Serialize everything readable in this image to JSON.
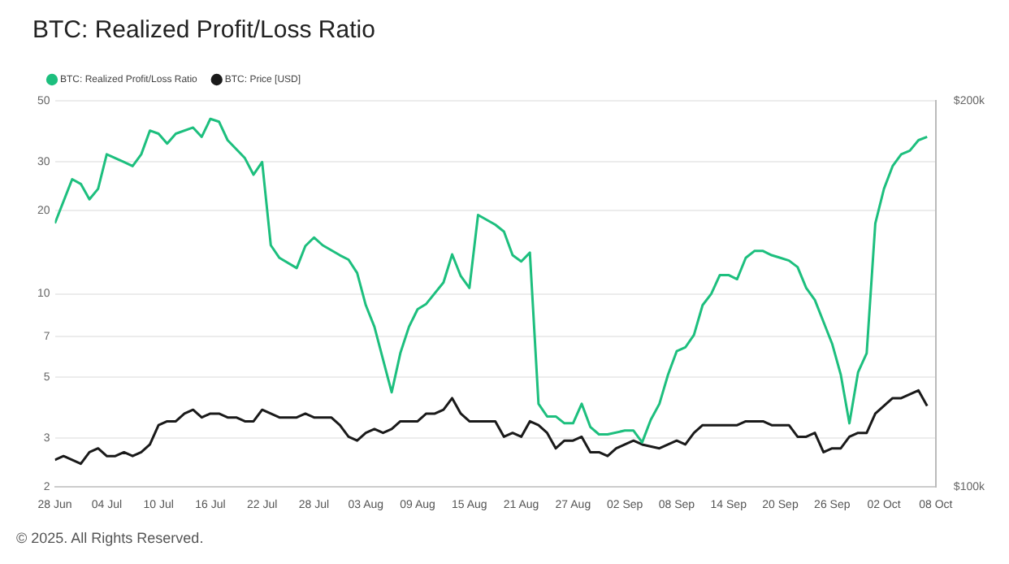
{
  "chart_data": {
    "type": "line",
    "title": "BTC: Realized Profit/Loss Ratio",
    "annotations": [
      "© 2025. All Rights Reserved."
    ],
    "xlim": [
      "2025-06-28",
      "2025-10-08"
    ],
    "xticks": [
      {
        "value": "2025-06-28",
        "label": "28 Jun"
      },
      {
        "value": "2025-07-04",
        "label": "04 Jul"
      },
      {
        "value": "2025-07-10",
        "label": "10 Jul"
      },
      {
        "value": "2025-07-16",
        "label": "16 Jul"
      },
      {
        "value": "2025-07-22",
        "label": "22 Jul"
      },
      {
        "value": "2025-07-28",
        "label": "28 Jul"
      },
      {
        "value": "2025-08-03",
        "label": "03 Aug"
      },
      {
        "value": "2025-08-09",
        "label": "09 Aug"
      },
      {
        "value": "2025-08-15",
        "label": "15 Aug"
      },
      {
        "value": "2025-08-21",
        "label": "21 Aug"
      },
      {
        "value": "2025-08-27",
        "label": "27 Aug"
      },
      {
        "value": "2025-09-02",
        "label": "02 Sep"
      },
      {
        "value": "2025-09-08",
        "label": "08 Sep"
      },
      {
        "value": "2025-09-14",
        "label": "14 Sep"
      },
      {
        "value": "2025-09-20",
        "label": "20 Sep"
      },
      {
        "value": "2025-09-26",
        "label": "26 Sep"
      },
      {
        "value": "2025-10-02",
        "label": "02 Oct"
      },
      {
        "value": "2025-10-08",
        "label": "08 Oct"
      }
    ],
    "ylim": [
      2,
      50
    ],
    "yticks": [
      2,
      3,
      5,
      7,
      10,
      20,
      30,
      50
    ],
    "y2lim": [
      100,
      200
    ],
    "y2ticks": [
      {
        "value": 100,
        "label": "$100k"
      },
      {
        "value": 200,
        "label": "$200k"
      }
    ],
    "log": "y",
    "grid": "y",
    "legend": "top left",
    "marker": "none",
    "series": [
      {
        "name": "BTC: Realized Profit/Loss Ratio",
        "color": "#1dbf7e",
        "x": [
          "2025-06-28",
          "2025-06-30",
          "2025-07-01",
          "2025-07-02",
          "2025-07-03",
          "2025-07-04",
          "2025-07-06",
          "2025-07-07",
          "2025-07-08",
          "2025-07-09",
          "2025-07-10",
          "2025-07-11",
          "2025-07-12",
          "2025-07-14",
          "2025-07-15",
          "2025-07-16",
          "2025-07-17",
          "2025-07-18",
          "2025-07-20",
          "2025-07-21",
          "2025-07-22",
          "2025-07-23",
          "2025-07-24",
          "2025-07-26",
          "2025-07-27",
          "2025-07-28",
          "2025-07-29",
          "2025-07-31",
          "2025-08-01",
          "2025-08-02",
          "2025-08-03",
          "2025-08-04",
          "2025-08-06",
          "2025-08-07",
          "2025-08-08",
          "2025-08-09",
          "2025-08-10",
          "2025-08-12",
          "2025-08-13",
          "2025-08-14",
          "2025-08-15",
          "2025-08-16",
          "2025-08-18",
          "2025-08-19",
          "2025-08-20",
          "2025-08-21",
          "2025-08-22",
          "2025-08-23",
          "2025-08-24",
          "2025-08-25",
          "2025-08-26",
          "2025-08-27",
          "2025-08-28",
          "2025-08-29",
          "2025-08-30",
          "2025-08-31",
          "2025-09-02",
          "2025-09-03",
          "2025-09-04",
          "2025-09-05",
          "2025-09-06",
          "2025-09-07",
          "2025-09-08",
          "2025-09-09",
          "2025-09-10",
          "2025-09-11",
          "2025-09-12",
          "2025-09-13",
          "2025-09-14",
          "2025-09-15",
          "2025-09-16",
          "2025-09-17",
          "2025-09-18",
          "2025-09-19",
          "2025-09-20",
          "2025-09-21",
          "2025-09-22",
          "2025-09-23",
          "2025-09-24",
          "2025-09-26",
          "2025-09-27",
          "2025-09-28",
          "2025-09-29",
          "2025-09-30",
          "2025-10-01",
          "2025-10-02",
          "2025-10-03",
          "2025-10-04",
          "2025-10-05",
          "2025-10-06",
          "2025-10-07"
        ],
        "values": [
          18,
          26,
          25,
          22,
          24,
          32,
          30,
          29,
          32,
          39,
          38,
          35,
          38,
          40,
          37,
          43,
          42,
          36,
          31,
          27,
          30,
          15,
          13.5,
          12.4,
          14.9,
          16,
          15,
          13.8,
          13.3,
          11.9,
          9.1,
          7.6,
          4.4,
          6.1,
          7.6,
          8.8,
          9.2,
          11,
          13.9,
          11.6,
          10.5,
          19.3,
          17.8,
          16.8,
          13.8,
          13.1,
          14.1,
          4,
          3.6,
          3.6,
          3.4,
          3.4,
          4,
          3.3,
          3.1,
          3.1,
          3.2,
          3.2,
          2.9,
          3.5,
          4,
          5.1,
          6.2,
          6.4,
          7.1,
          9.1,
          10,
          11.7,
          11.7,
          11.3,
          13.5,
          14.3,
          14.3,
          13.8,
          13.5,
          13.2,
          12.5,
          10.5,
          9.5,
          6.6,
          5.1,
          3.4,
          5.2,
          6.1,
          18,
          24,
          29,
          32,
          33,
          36,
          37
        ]
      },
      {
        "name": "BTC: Price [USD]",
        "color": "#1a1a1a",
        "axis": "y2",
        "x": [
          "2025-06-28",
          "2025-06-29",
          "2025-07-01",
          "2025-07-02",
          "2025-07-03",
          "2025-07-04",
          "2025-07-05",
          "2025-07-06",
          "2025-07-07",
          "2025-07-08",
          "2025-07-09",
          "2025-07-10",
          "2025-07-11",
          "2025-07-12",
          "2025-07-13",
          "2025-07-14",
          "2025-07-15",
          "2025-07-16",
          "2025-07-17",
          "2025-07-18",
          "2025-07-19",
          "2025-07-20",
          "2025-07-21",
          "2025-07-22",
          "2025-07-23",
          "2025-07-24",
          "2025-07-26",
          "2025-07-27",
          "2025-07-28",
          "2025-07-29",
          "2025-07-30",
          "2025-07-31",
          "2025-08-01",
          "2025-08-02",
          "2025-08-03",
          "2025-08-04",
          "2025-08-05",
          "2025-08-06",
          "2025-08-07",
          "2025-08-08",
          "2025-08-09",
          "2025-08-10",
          "2025-08-11",
          "2025-08-12",
          "2025-08-13",
          "2025-08-14",
          "2025-08-15",
          "2025-08-16",
          "2025-08-18",
          "2025-08-19",
          "2025-08-20",
          "2025-08-21",
          "2025-08-22",
          "2025-08-23",
          "2025-08-24",
          "2025-08-25",
          "2025-08-26",
          "2025-08-27",
          "2025-08-28",
          "2025-08-29",
          "2025-08-30",
          "2025-08-31",
          "2025-09-01",
          "2025-09-02",
          "2025-09-03",
          "2025-09-04",
          "2025-09-06",
          "2025-09-07",
          "2025-09-08",
          "2025-09-09",
          "2025-09-10",
          "2025-09-11",
          "2025-09-12",
          "2025-09-13",
          "2025-09-14",
          "2025-09-15",
          "2025-09-16",
          "2025-09-17",
          "2025-09-18",
          "2025-09-19",
          "2025-09-20",
          "2025-09-21",
          "2025-09-22",
          "2025-09-23",
          "2025-09-24",
          "2025-09-25",
          "2025-09-26",
          "2025-09-27",
          "2025-09-28",
          "2025-09-29",
          "2025-09-30",
          "2025-10-01",
          "2025-10-02",
          "2025-10-03",
          "2025-10-04",
          "2025-10-05",
          "2025-10-06",
          "2025-10-07"
        ],
        "values": [
          107,
          108,
          106,
          109,
          110,
          108,
          108,
          109,
          108,
          109,
          111,
          116,
          117,
          117,
          119,
          120,
          118,
          119,
          119,
          118,
          118,
          117,
          117,
          120,
          119,
          118,
          118,
          119,
          118,
          118,
          118,
          116,
          113,
          112,
          114,
          115,
          114,
          115,
          117,
          117,
          117,
          119,
          119,
          120,
          123,
          119,
          117,
          117,
          117,
          113,
          114,
          113,
          117,
          116,
          114,
          110,
          112,
          112,
          113,
          109,
          109,
          108,
          110,
          111,
          112,
          111,
          110,
          111,
          112,
          111,
          114,
          116,
          116,
          116,
          116,
          116,
          117,
          117,
          117,
          116,
          116,
          116,
          113,
          113,
          114,
          109,
          110,
          110,
          113,
          114,
          114,
          119,
          121,
          123,
          123,
          124,
          125,
          121
        ]
      }
    ]
  }
}
